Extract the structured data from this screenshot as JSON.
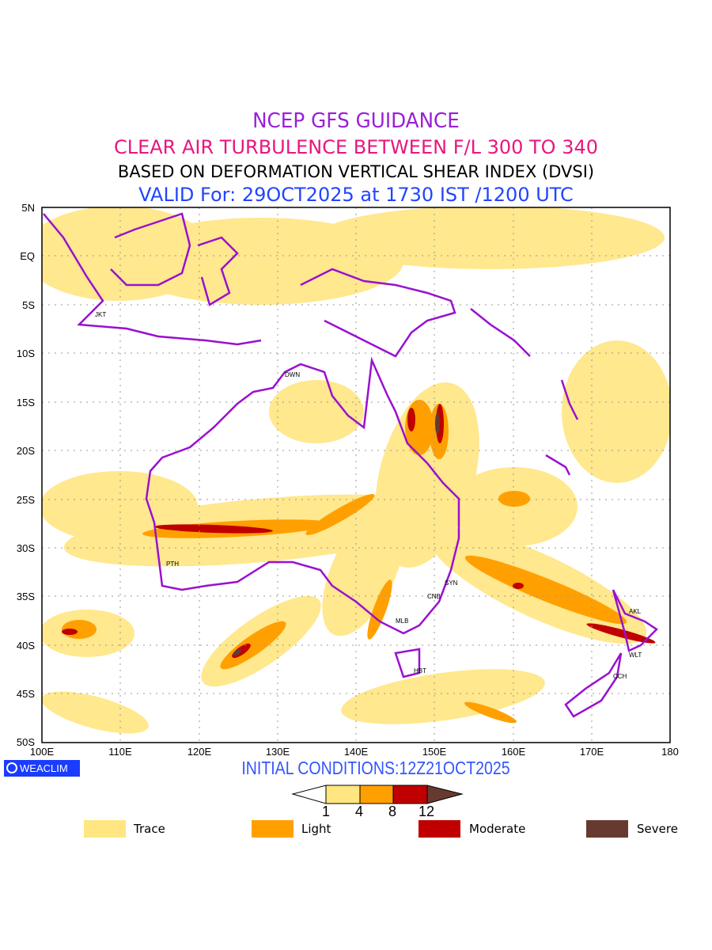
{
  "titles": {
    "line1": "NCEP GFS GUIDANCE",
    "line2": "CLEAR AIR TURBULENCE BETWEEN F/L 300 TO 340",
    "line3": "BASED ON DEFORMATION VERTICAL SHEAR INDEX (DVSI)",
    "line4": "VALID For: 29OCT2025 at 1730 IST /1200 UTC"
  },
  "map": {
    "lat_labels": [
      "5N",
      "EQ",
      "5S",
      "10S",
      "15S",
      "20S",
      "25S",
      "30S",
      "35S",
      "40S",
      "45S",
      "50S"
    ],
    "lon_labels": [
      "100E",
      "110E",
      "120E",
      "130E",
      "140E",
      "150E",
      "160E",
      "170E",
      "180"
    ],
    "stations": [
      "JKT",
      "DWN",
      "PTH",
      "SYN",
      "CNB",
      "MLB",
      "HBT",
      "AKL",
      "WLT",
      "CCH"
    ]
  },
  "footer": {
    "logo": "WEACLIM",
    "initial_conditions": "INITIAL CONDITIONS:12Z21OCT2025"
  },
  "colorbar": {
    "thresholds": [
      "1",
      "4",
      "8",
      "12"
    ],
    "colors": [
      "#ffe680",
      "#ffa000",
      "#c00000",
      "#673a30"
    ]
  },
  "legend": [
    {
      "label": "Trace",
      "color": "#ffe680"
    },
    {
      "label": "Light",
      "color": "#ffa000"
    },
    {
      "label": "Moderate",
      "color": "#c00000"
    },
    {
      "label": "Severe",
      "color": "#673a30"
    }
  ]
}
